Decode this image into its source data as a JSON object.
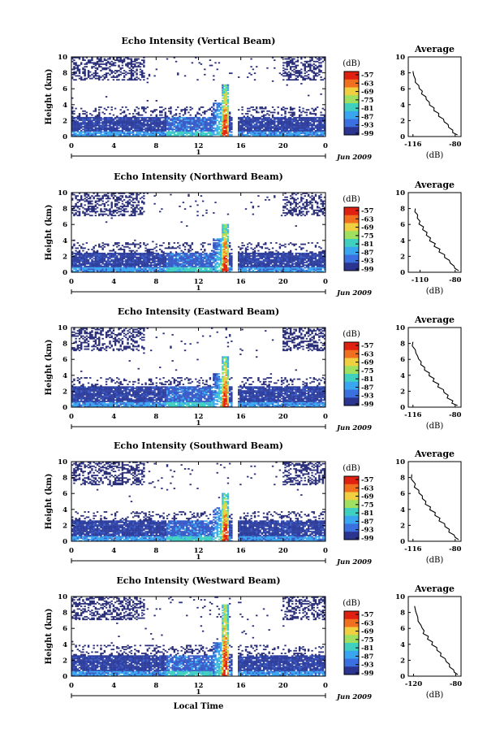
{
  "figure": {
    "xlabel": "Local Time",
    "date_label": "Jun 2009",
    "day_label": "1",
    "colorbar_unit": "(dB)",
    "colorbar_ticks": [
      "-57",
      "-63",
      "-69",
      "-75",
      "-81",
      "-87",
      "-93",
      "-99"
    ],
    "colors": {
      "noise": "#ffffff",
      "low": "#2b3590",
      "mid": "#3aa6f0",
      "high": "#f0d040",
      "peak": "#e02010"
    }
  },
  "chart_data": [
    {
      "type": "heatmap",
      "title": "Echo Intensity (Vertical Beam)",
      "ylabel": "Height (km)",
      "xlabel": "",
      "xticks": [
        "0",
        "4",
        "8",
        "12",
        "16",
        "20",
        "0"
      ],
      "yticks": [
        "0",
        "2",
        "4",
        "6",
        "8",
        "10"
      ],
      "xlim": [
        0,
        24
      ],
      "ylim": [
        0,
        10
      ],
      "boundary_layer_top_km": 2.5,
      "convective_peak_time_h": 14.5,
      "convective_peak_height_km": 6.5,
      "data_gap_h": [
        15.2,
        15.8
      ],
      "colorbar_range_db": [
        -99,
        -57
      ]
    },
    {
      "type": "line",
      "title": "Average",
      "xlabel": "(dB)",
      "ylabel": "",
      "xticks": [
        "-116",
        "-80"
      ],
      "yticks": [
        "0",
        "2",
        "4",
        "6",
        "8",
        "10"
      ],
      "xlim": [
        -120,
        -75
      ],
      "ylim": [
        0,
        10
      ],
      "x": [
        -78,
        -82,
        -86,
        -90,
        -94,
        -98,
        -102,
        -105,
        -108,
        -111,
        -114,
        -116
      ],
      "y": [
        0.2,
        0.8,
        1.5,
        2.2,
        2.9,
        3.6,
        4.3,
        5.0,
        5.7,
        6.4,
        7.2,
        8.2
      ]
    },
    {
      "type": "heatmap",
      "title": "Echo Intensity (Northward Beam)",
      "ylabel": "Height (km)",
      "xlabel": "",
      "xticks": [
        "0",
        "4",
        "8",
        "12",
        "16",
        "20",
        "0"
      ],
      "yticks": [
        "0",
        "2",
        "4",
        "6",
        "8",
        "10"
      ],
      "xlim": [
        0,
        24
      ],
      "ylim": [
        0,
        10
      ],
      "boundary_layer_top_km": 2.5,
      "convective_peak_time_h": 14.5,
      "convective_peak_height_km": 6.0,
      "data_gap_h": [
        15.2,
        15.8
      ],
      "colorbar_range_db": [
        -99,
        -57
      ]
    },
    {
      "type": "line",
      "title": "Average",
      "xlabel": "(dB)",
      "ylabel": "",
      "xticks": [
        "-110",
        "-80"
      ],
      "yticks": [
        "0",
        "2",
        "4",
        "6",
        "8",
        "10"
      ],
      "xlim": [
        -120,
        -75
      ],
      "ylim": [
        0,
        10
      ],
      "x": [
        -77,
        -81,
        -85,
        -89,
        -93,
        -97,
        -101,
        -104,
        -107,
        -110,
        -112,
        -114
      ],
      "y": [
        0.2,
        0.8,
        1.5,
        2.2,
        2.9,
        3.6,
        4.3,
        5.0,
        5.7,
        6.4,
        7.2,
        8.0
      ]
    },
    {
      "type": "heatmap",
      "title": "Echo Intensity (Eastward Beam)",
      "ylabel": "Height (km)",
      "xlabel": "",
      "xticks": [
        "0",
        "4",
        "8",
        "12",
        "16",
        "20",
        "0"
      ],
      "yticks": [
        "0",
        "2",
        "4",
        "6",
        "8",
        "10"
      ],
      "xlim": [
        0,
        24
      ],
      "ylim": [
        0,
        10
      ],
      "boundary_layer_top_km": 2.6,
      "convective_peak_time_h": 14.5,
      "convective_peak_height_km": 6.4,
      "data_gap_h": [
        15.2,
        15.8
      ],
      "colorbar_range_db": [
        -99,
        -57
      ]
    },
    {
      "type": "line",
      "title": "Average",
      "xlabel": "(dB)",
      "ylabel": "",
      "xticks": [
        "-116",
        "-80"
      ],
      "yticks": [
        "0",
        "2",
        "4",
        "6",
        "8",
        "10"
      ],
      "xlim": [
        -120,
        -75
      ],
      "ylim": [
        0,
        10
      ],
      "x": [
        -78,
        -82,
        -86,
        -90,
        -94,
        -98,
        -102,
        -106,
        -109,
        -112,
        -114,
        -116
      ],
      "y": [
        0.2,
        0.8,
        1.5,
        2.2,
        2.9,
        3.6,
        4.3,
        5.0,
        5.7,
        6.4,
        7.2,
        8.2
      ]
    },
    {
      "type": "heatmap",
      "title": "Echo Intensity (Southward Beam)",
      "ylabel": "Height (km)",
      "xlabel": "",
      "xticks": [
        "0",
        "4",
        "8",
        "12",
        "16",
        "20",
        "0"
      ],
      "yticks": [
        "0",
        "2",
        "4",
        "6",
        "8",
        "10"
      ],
      "xlim": [
        0,
        24
      ],
      "ylim": [
        0,
        10
      ],
      "boundary_layer_top_km": 2.6,
      "convective_peak_time_h": 14.5,
      "convective_peak_height_km": 6.0,
      "data_gap_h": [
        15.2,
        15.8
      ],
      "colorbar_range_db": [
        -99,
        -57
      ]
    },
    {
      "type": "line",
      "title": "Average",
      "xlabel": "(dB)",
      "ylabel": "",
      "xticks": [
        "-116",
        "-80"
      ],
      "yticks": [
        "0",
        "2",
        "4",
        "6",
        "8",
        "10"
      ],
      "xlim": [
        -120,
        -75
      ],
      "ylim": [
        0,
        10
      ],
      "x": [
        -77,
        -81,
        -85,
        -89,
        -93,
        -97,
        -101,
        -105,
        -108,
        -111,
        -114,
        -117
      ],
      "y": [
        0.2,
        0.8,
        1.5,
        2.2,
        2.9,
        3.6,
        4.3,
        5.0,
        5.7,
        6.4,
        7.2,
        8.4
      ]
    },
    {
      "type": "heatmap",
      "title": "Echo Intensity (Westward Beam)",
      "ylabel": "Height (km)",
      "xlabel": "Local Time",
      "xticks": [
        "0",
        "4",
        "8",
        "12",
        "16",
        "20",
        "0"
      ],
      "yticks": [
        "0",
        "2",
        "4",
        "6",
        "8",
        "10"
      ],
      "xlim": [
        0,
        24
      ],
      "ylim": [
        0,
        10
      ],
      "boundary_layer_top_km": 2.7,
      "convective_peak_time_h": 14.5,
      "convective_peak_height_km": 9.0,
      "data_gap_h": [
        15.2,
        15.8
      ],
      "colorbar_range_db": [
        -99,
        -57
      ]
    },
    {
      "type": "line",
      "title": "Average",
      "xlabel": "(dB)",
      "ylabel": "",
      "xticks": [
        "-120",
        "-80"
      ],
      "yticks": [
        "0",
        "2",
        "4",
        "6",
        "8",
        "10"
      ],
      "xlim": [
        -125,
        -75
      ],
      "ylim": [
        0,
        10
      ],
      "x": [
        -78,
        -82,
        -86,
        -90,
        -94,
        -98,
        -102,
        -106,
        -110,
        -113,
        -116,
        -119
      ],
      "y": [
        0.2,
        0.8,
        1.5,
        2.2,
        2.9,
        3.6,
        4.3,
        5.0,
        5.7,
        6.4,
        7.4,
        8.8
      ]
    }
  ]
}
